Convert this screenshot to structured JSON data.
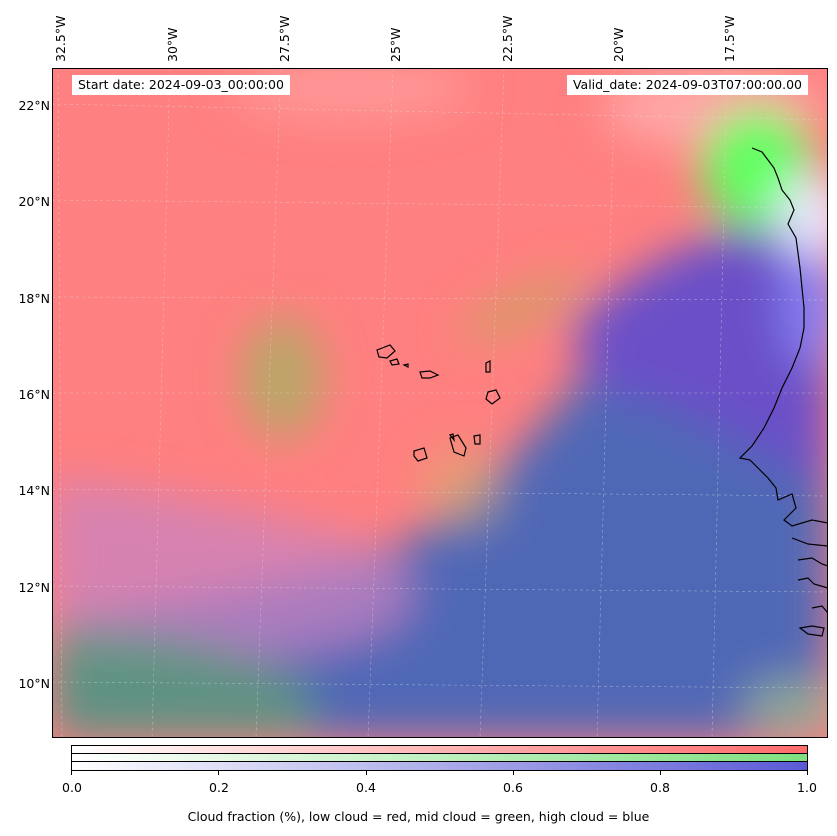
{
  "map": {
    "start_date": "Start date: 2024-09-03_00:00:00",
    "valid_date": "Valid_date: 2024-09-03T07:00:00.00",
    "longitude_labels": [
      "32.5°W",
      "30°W",
      "27.5°W",
      "25°W",
      "22.5°W",
      "20°W",
      "17.5°W"
    ],
    "latitude_labels": [
      "22°N",
      "20°N",
      "18°N",
      "16°N",
      "14°N",
      "12°N",
      "10°N"
    ],
    "colors": {
      "low_cloud": "#ff6b6b",
      "mid_cloud": "#7fe07f",
      "high_cloud": "#5a5ad6",
      "ocean_blue": "#4c68b8"
    }
  },
  "colorbar": {
    "ticks": [
      "0.0",
      "0.2",
      "0.4",
      "0.6",
      "0.8",
      "1.0"
    ],
    "label": "Cloud fraction (%), low cloud = red, mid cloud = green, high cloud = blue"
  }
}
